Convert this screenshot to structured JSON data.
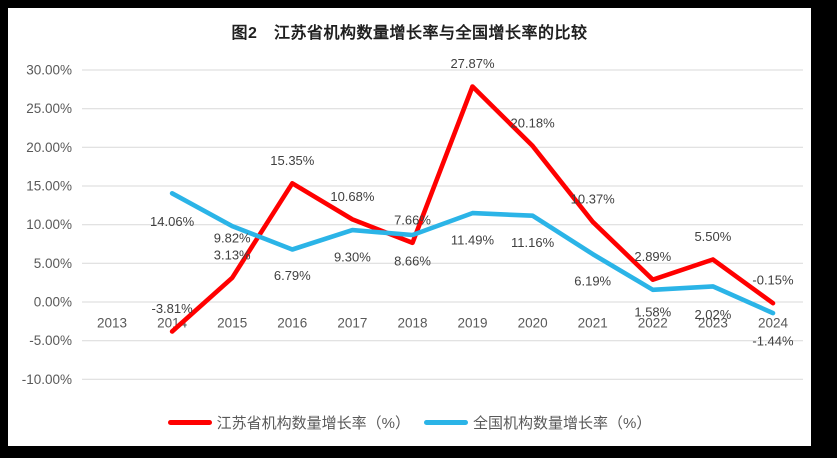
{
  "chart_data": {
    "type": "line",
    "title": "图2　江苏省机构数量增长率与全国增长率的比较",
    "categories": [
      "2013",
      "2014",
      "2015",
      "2016",
      "2017",
      "2018",
      "2019",
      "2020",
      "2021",
      "2022",
      "2023",
      "2024"
    ],
    "series": [
      {
        "name": "江苏省机构数量增长率（%）",
        "color": "#FF0000",
        "values": [
          null,
          -3.81,
          3.13,
          15.35,
          10.68,
          7.66,
          27.87,
          20.18,
          10.37,
          2.89,
          5.5,
          -0.15
        ]
      },
      {
        "name": "全国机构数量增长率（%）",
        "color": "#2BB4E7",
        "values": [
          null,
          14.06,
          9.82,
          6.79,
          9.3,
          8.66,
          11.49,
          11.16,
          6.19,
          1.58,
          2.02,
          -1.44
        ]
      }
    ],
    "yticks": [
      30,
      25,
      20,
      15,
      10,
      5,
      0,
      -5,
      -10
    ],
    "ytick_format": "0.00%",
    "ylim": [
      -10,
      30
    ],
    "grid": true,
    "grid_color": "#D9D9D9",
    "data_labels": true,
    "legend_position": "bottom"
  }
}
